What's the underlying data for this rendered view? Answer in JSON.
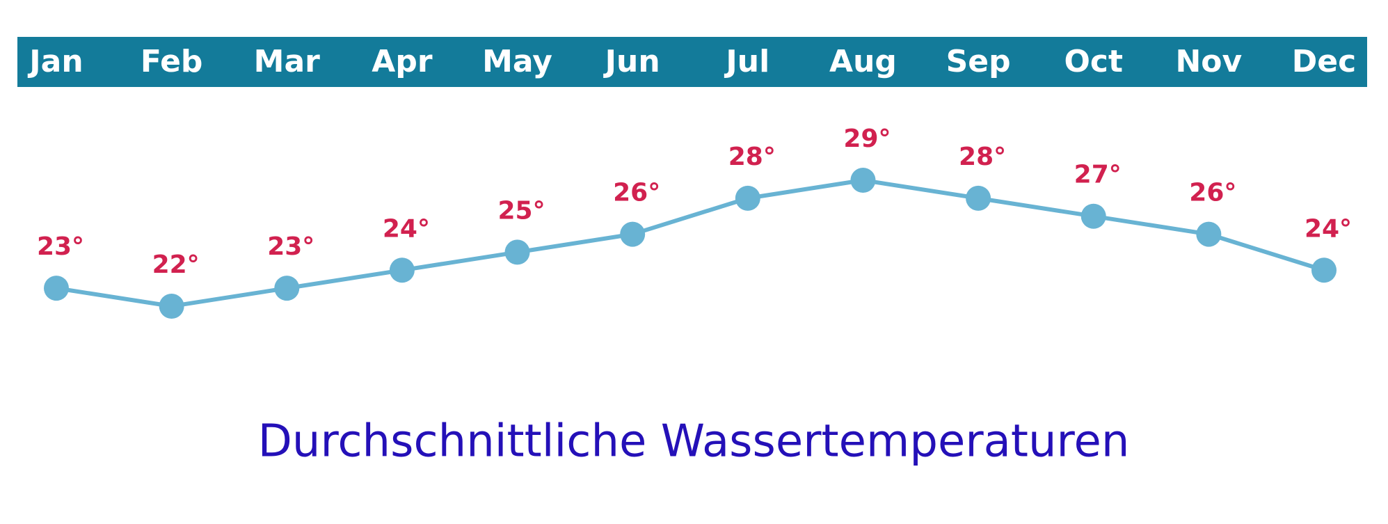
{
  "chart_data": {
    "type": "line",
    "title": "Durchschnittliche Wassertemperaturen",
    "categories": [
      "Jan",
      "Feb",
      "Mar",
      "Apr",
      "May",
      "Jun",
      "Jul",
      "Aug",
      "Sep",
      "Oct",
      "Nov",
      "Dec"
    ],
    "values": [
      23,
      22,
      23,
      24,
      25,
      26,
      28,
      29,
      28,
      27,
      26,
      24
    ],
    "value_labels": [
      "23°",
      "22°",
      "23°",
      "24°",
      "25°",
      "26°",
      "28°",
      "29°",
      "28°",
      "27°",
      "26°",
      "24°"
    ],
    "color": "#68b3d3",
    "label_color": "#d1214f",
    "header_color": "#137b9a",
    "title_color": "#2410b8"
  }
}
